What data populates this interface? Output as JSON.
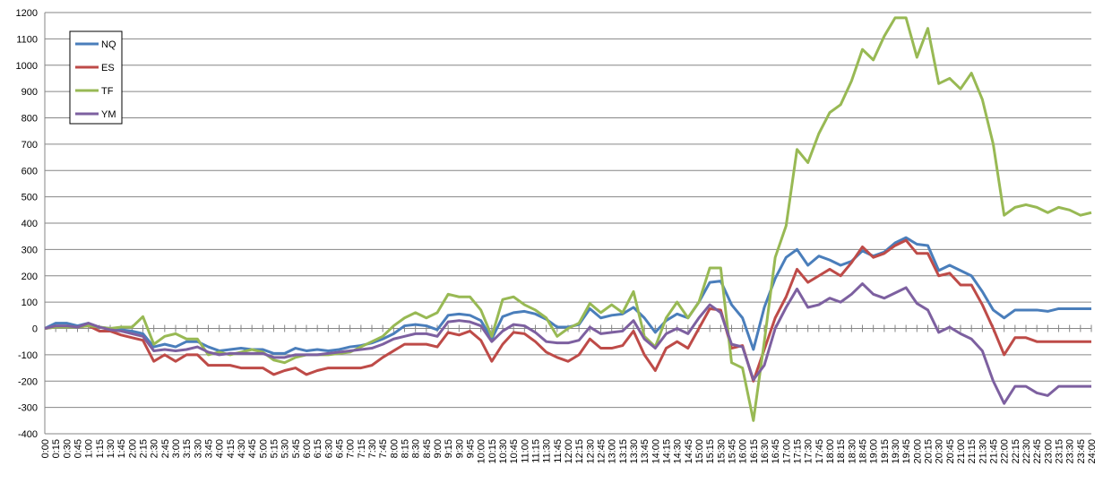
{
  "chart_data": {
    "type": "line",
    "categories": [
      "0:00",
      "0:15",
      "0:30",
      "0:45",
      "1:00",
      "1:15",
      "1:30",
      "1:45",
      "2:00",
      "2:15",
      "2:30",
      "2:45",
      "3:00",
      "3:15",
      "3:30",
      "3:45",
      "4:00",
      "4:15",
      "4:30",
      "4:45",
      "5:00",
      "5:15",
      "5:30",
      "5:45",
      "6:00",
      "6:15",
      "6:30",
      "6:45",
      "7:00",
      "7:15",
      "7:30",
      "7:45",
      "8:00",
      "8:15",
      "8:30",
      "8:45",
      "9:00",
      "9:15",
      "9:30",
      "9:45",
      "10:00",
      "10:15",
      "10:30",
      "10:45",
      "11:00",
      "11:15",
      "11:30",
      "11:45",
      "12:00",
      "12:15",
      "12:30",
      "12:45",
      "13:00",
      "13:15",
      "13:30",
      "13:45",
      "14:00",
      "14:15",
      "14:30",
      "14:45",
      "15:00",
      "15:15",
      "15:30",
      "15:45",
      "16:00",
      "16:15",
      "16:30",
      "16:45",
      "17:00",
      "17:15",
      "17:30",
      "17:45",
      "18:00",
      "18:15",
      "18:30",
      "18:45",
      "19:00",
      "19:15",
      "19:30",
      "19:45",
      "20:00",
      "20:15",
      "20:30",
      "20:45",
      "21:00",
      "21:15",
      "21:30",
      "21:45",
      "22:00",
      "22:15",
      "22:30",
      "22:45",
      "23:00",
      "23:15",
      "23:30",
      "23:45",
      "24:00"
    ],
    "series": [
      {
        "name": "NQ",
        "color": "#4a7ebb",
        "values": [
          0,
          20,
          20,
          10,
          20,
          5,
          0,
          -5,
          -10,
          -20,
          -70,
          -60,
          -70,
          -50,
          -50,
          -70,
          -85,
          -80,
          -75,
          -80,
          -80,
          -95,
          -95,
          -75,
          -85,
          -80,
          -85,
          -80,
          -70,
          -65,
          -55,
          -40,
          -20,
          10,
          15,
          10,
          -5,
          50,
          55,
          50,
          30,
          -40,
          45,
          60,
          65,
          55,
          35,
          5,
          5,
          15,
          75,
          40,
          50,
          55,
          80,
          40,
          -15,
          30,
          55,
          40,
          100,
          175,
          180,
          90,
          40,
          -80,
          80,
          190,
          270,
          300,
          240,
          275,
          260,
          240,
          255,
          295,
          275,
          290,
          325,
          345,
          320,
          315,
          220,
          240,
          220,
          200,
          140,
          70,
          40,
          70,
          70,
          70,
          65,
          75,
          75,
          75,
          75
        ]
      },
      {
        "name": "ES",
        "color": "#be4b48",
        "values": [
          0,
          5,
          5,
          5,
          10,
          -10,
          -10,
          -25,
          -35,
          -45,
          -125,
          -100,
          -125,
          -100,
          -100,
          -140,
          -140,
          -140,
          -150,
          -150,
          -150,
          -175,
          -160,
          -150,
          -175,
          -160,
          -150,
          -150,
          -150,
          -150,
          -140,
          -110,
          -85,
          -60,
          -60,
          -60,
          -70,
          -15,
          -25,
          -10,
          -45,
          -125,
          -60,
          -15,
          -20,
          -50,
          -90,
          -110,
          -125,
          -100,
          -40,
          -75,
          -75,
          -65,
          -10,
          -100,
          -160,
          -75,
          -50,
          -75,
          0,
          75,
          70,
          -75,
          -65,
          -200,
          -80,
          40,
          120,
          225,
          175,
          200,
          225,
          200,
          250,
          310,
          270,
          285,
          315,
          335,
          285,
          285,
          200,
          210,
          165,
          165,
          90,
          0,
          -100,
          -35,
          -35,
          -50,
          -50,
          -50,
          -50,
          -50,
          -50
        ]
      },
      {
        "name": "TF",
        "color": "#98b954",
        "values": [
          0,
          5,
          5,
          5,
          10,
          5,
          0,
          5,
          5,
          45,
          -60,
          -30,
          -20,
          -40,
          -40,
          -100,
          -90,
          -100,
          -90,
          -80,
          -90,
          -120,
          -130,
          -110,
          -100,
          -100,
          -100,
          -95,
          -90,
          -70,
          -50,
          -30,
          10,
          40,
          60,
          40,
          60,
          130,
          120,
          120,
          70,
          -30,
          110,
          120,
          90,
          70,
          40,
          -30,
          0,
          20,
          95,
          60,
          90,
          60,
          140,
          -30,
          -70,
          40,
          100,
          40,
          100,
          230,
          230,
          -130,
          -150,
          -350,
          -50,
          270,
          390,
          680,
          630,
          740,
          820,
          850,
          940,
          1060,
          1020,
          1110,
          1180,
          1180,
          1030,
          1140,
          930,
          950,
          910,
          970,
          870,
          700,
          430,
          460,
          470,
          460,
          440,
          460,
          450,
          430,
          440
        ]
      },
      {
        "name": "YM",
        "color": "#7d60a0",
        "values": [
          0,
          10,
          10,
          5,
          20,
          5,
          -5,
          -10,
          -20,
          -30,
          -85,
          -80,
          -85,
          -80,
          -70,
          -90,
          -100,
          -95,
          -95,
          -95,
          -95,
          -110,
          -110,
          -100,
          -100,
          -100,
          -95,
          -90,
          -85,
          -80,
          -75,
          -60,
          -40,
          -30,
          -20,
          -20,
          -30,
          25,
          30,
          25,
          10,
          -50,
          -10,
          15,
          10,
          -15,
          -50,
          -55,
          -55,
          -45,
          5,
          -20,
          -15,
          -10,
          30,
          -40,
          -75,
          -20,
          0,
          -20,
          40,
          90,
          60,
          -60,
          -70,
          -195,
          -140,
          0,
          80,
          150,
          80,
          90,
          115,
          100,
          130,
          170,
          130,
          115,
          135,
          155,
          95,
          70,
          -15,
          5,
          -20,
          -40,
          -85,
          -200,
          -285,
          -220,
          -220,
          -245,
          -255,
          -220,
          -220,
          -220,
          -220
        ]
      }
    ],
    "ylim": [
      -400,
      1200
    ],
    "yticks": [
      -400,
      -300,
      -200,
      -100,
      0,
      100,
      200,
      300,
      400,
      500,
      600,
      700,
      800,
      900,
      1000,
      1100,
      1200
    ],
    "grid": true
  }
}
